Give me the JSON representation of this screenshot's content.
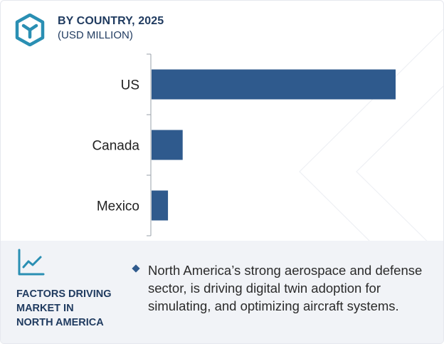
{
  "header": {
    "title": "BY COUNTRY, 2025",
    "subtitle": "(USD MILLION)"
  },
  "chart_data": {
    "type": "bar",
    "orientation": "horizontal",
    "title": "BY COUNTRY, 2025",
    "subtitle": "(USD MILLION)",
    "categories": [
      "US",
      "Canada",
      "Mexico"
    ],
    "values": [
      100,
      13,
      7
    ],
    "xlabel": "",
    "ylabel": "",
    "xlim": [
      0,
      100
    ],
    "grid": false,
    "bar_color": "#2f5a8d"
  },
  "panel": {
    "heading_lines": [
      "FACTORS DRIVING",
      "MARKET IN",
      "NORTH AMERICA"
    ],
    "bullet": "North America’s strong aerospace and defense sector, is driving digital twin adoption for simulating, and optimizing aircraft systems."
  },
  "colors": {
    "primary": "#1f3a5f",
    "bar": "#2f5a8d",
    "accent": "#2a8fb3",
    "panel_bg": "#f1f3f7"
  },
  "icons": {
    "logo": "cube-logo-icon",
    "factors": "trend-line-icon",
    "bullet": "diamond-bullet-icon"
  }
}
